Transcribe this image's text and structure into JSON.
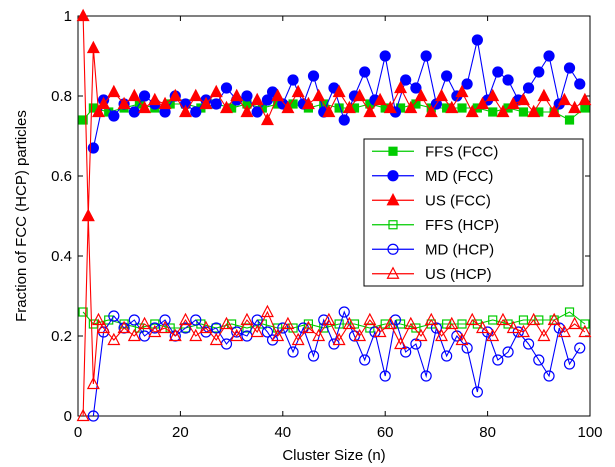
{
  "chart_data": {
    "type": "line",
    "title": "",
    "xlabel": "Cluster Size (n)",
    "ylabel": "Fraction of FCC (HCP) particles",
    "xlim": [
      0,
      100
    ],
    "ylim": [
      0,
      1
    ],
    "x_ticks": [
      0,
      20,
      40,
      60,
      80,
      100
    ],
    "y_ticks": [
      0,
      0.2,
      0.4,
      0.6,
      0.8,
      1
    ],
    "x_tick_labels": [
      "0",
      "20",
      "40",
      "60",
      "80",
      "100"
    ],
    "y_tick_labels": [
      "0",
      "0.2",
      "0.4",
      "0.6",
      "0.8",
      "1"
    ],
    "grid": false,
    "legend_position": "right",
    "series": [
      {
        "name": "FFS (FCC)",
        "color": "#00cc00",
        "marker": "square-filled",
        "x": [
          1,
          3,
          6,
          9,
          12,
          15,
          18,
          21,
          24,
          27,
          30,
          33,
          36,
          39,
          42,
          45,
          48,
          51,
          54,
          57,
          60,
          63,
          66,
          69,
          72,
          75,
          78,
          81,
          84,
          87,
          90,
          93,
          96,
          99
        ],
        "y": [
          0.74,
          0.77,
          0.76,
          0.77,
          0.78,
          0.77,
          0.78,
          0.78,
          0.77,
          0.78,
          0.77,
          0.78,
          0.77,
          0.78,
          0.78,
          0.77,
          0.78,
          0.77,
          0.77,
          0.78,
          0.77,
          0.77,
          0.78,
          0.77,
          0.77,
          0.77,
          0.77,
          0.76,
          0.77,
          0.76,
          0.76,
          0.76,
          0.74,
          0.77
        ]
      },
      {
        "name": "MD (FCC)",
        "color": "#0000ff",
        "marker": "circle-filled",
        "x": [
          3,
          5,
          7,
          9,
          11,
          13,
          15,
          17,
          19,
          21,
          23,
          25,
          27,
          29,
          31,
          33,
          35,
          37,
          38,
          40,
          42,
          44,
          46,
          48,
          50,
          52,
          54,
          56,
          58,
          60,
          62,
          64,
          66,
          68,
          70,
          72,
          74,
          76,
          78,
          80,
          82,
          84,
          86,
          88,
          90,
          92,
          94,
          96,
          98
        ],
        "y": [
          0.67,
          0.79,
          0.75,
          0.78,
          0.76,
          0.8,
          0.78,
          0.76,
          0.8,
          0.78,
          0.76,
          0.79,
          0.78,
          0.82,
          0.79,
          0.8,
          0.76,
          0.79,
          0.81,
          0.78,
          0.84,
          0.78,
          0.85,
          0.76,
          0.82,
          0.74,
          0.8,
          0.86,
          0.79,
          0.9,
          0.76,
          0.84,
          0.82,
          0.9,
          0.78,
          0.85,
          0.8,
          0.83,
          0.94,
          0.79,
          0.86,
          0.84,
          0.79,
          0.82,
          0.86,
          0.9,
          0.78,
          0.87,
          0.83
        ]
      },
      {
        "name": "US (FCC)",
        "color": "#ff0000",
        "marker": "triangle-filled",
        "x": [
          1,
          2,
          3,
          4,
          5,
          7,
          9,
          11,
          13,
          15,
          17,
          19,
          21,
          23,
          25,
          27,
          29,
          31,
          33,
          35,
          37,
          39,
          41,
          43,
          45,
          47,
          49,
          51,
          53,
          55,
          57,
          59,
          61,
          63,
          65,
          67,
          69,
          71,
          73,
          75,
          77,
          79,
          81,
          83,
          85,
          87,
          89,
          91,
          93,
          95,
          97,
          99
        ],
        "y": [
          1.0,
          0.5,
          0.92,
          0.76,
          0.78,
          0.81,
          0.78,
          0.8,
          0.77,
          0.79,
          0.78,
          0.8,
          0.76,
          0.8,
          0.78,
          0.81,
          0.77,
          0.8,
          0.76,
          0.79,
          0.74,
          0.8,
          0.77,
          0.81,
          0.78,
          0.8,
          0.76,
          0.81,
          0.77,
          0.8,
          0.76,
          0.79,
          0.77,
          0.82,
          0.77,
          0.8,
          0.76,
          0.8,
          0.77,
          0.81,
          0.76,
          0.78,
          0.8,
          0.76,
          0.78,
          0.79,
          0.76,
          0.8,
          0.76,
          0.79,
          0.77,
          0.79
        ]
      },
      {
        "name": "FFS (HCP)",
        "color": "#00cc00",
        "marker": "square-open",
        "x": [
          1,
          3,
          6,
          9,
          12,
          15,
          18,
          21,
          24,
          27,
          30,
          33,
          36,
          39,
          42,
          45,
          48,
          51,
          54,
          57,
          60,
          63,
          66,
          69,
          72,
          75,
          78,
          81,
          84,
          87,
          90,
          93,
          96,
          99
        ],
        "y": [
          0.26,
          0.23,
          0.24,
          0.23,
          0.22,
          0.23,
          0.22,
          0.22,
          0.23,
          0.22,
          0.23,
          0.22,
          0.23,
          0.22,
          0.22,
          0.23,
          0.22,
          0.23,
          0.23,
          0.22,
          0.23,
          0.23,
          0.22,
          0.23,
          0.23,
          0.23,
          0.23,
          0.24,
          0.23,
          0.24,
          0.24,
          0.24,
          0.26,
          0.23
        ]
      },
      {
        "name": "MD (HCP)",
        "color": "#0000ff",
        "marker": "circle-open",
        "x": [
          3,
          5,
          7,
          9,
          11,
          13,
          15,
          17,
          19,
          21,
          23,
          25,
          27,
          29,
          31,
          33,
          35,
          37,
          38,
          40,
          42,
          44,
          46,
          48,
          50,
          52,
          54,
          56,
          58,
          60,
          62,
          64,
          66,
          68,
          70,
          72,
          74,
          76,
          78,
          80,
          82,
          84,
          86,
          88,
          90,
          92,
          94,
          96,
          98
        ],
        "y": [
          0.0,
          0.21,
          0.25,
          0.22,
          0.24,
          0.2,
          0.22,
          0.24,
          0.2,
          0.22,
          0.24,
          0.21,
          0.22,
          0.18,
          0.21,
          0.2,
          0.24,
          0.21,
          0.19,
          0.22,
          0.16,
          0.22,
          0.15,
          0.24,
          0.18,
          0.26,
          0.2,
          0.14,
          0.21,
          0.1,
          0.24,
          0.16,
          0.18,
          0.1,
          0.22,
          0.15,
          0.2,
          0.17,
          0.06,
          0.21,
          0.14,
          0.16,
          0.21,
          0.18,
          0.14,
          0.1,
          0.22,
          0.13,
          0.17
        ]
      },
      {
        "name": "US (HCP)",
        "color": "#ff0000",
        "marker": "triangle-open",
        "x": [
          1,
          2,
          3,
          4,
          5,
          7,
          9,
          11,
          13,
          15,
          17,
          19,
          21,
          23,
          25,
          27,
          29,
          31,
          33,
          35,
          37,
          39,
          41,
          43,
          45,
          47,
          49,
          51,
          53,
          55,
          57,
          59,
          61,
          63,
          65,
          67,
          69,
          71,
          73,
          75,
          77,
          79,
          81,
          83,
          85,
          87,
          89,
          91,
          93,
          95,
          97,
          99
        ],
        "y": [
          0.0,
          0.5,
          0.08,
          0.24,
          0.22,
          0.19,
          0.22,
          0.2,
          0.23,
          0.21,
          0.22,
          0.2,
          0.24,
          0.2,
          0.22,
          0.19,
          0.23,
          0.2,
          0.24,
          0.21,
          0.26,
          0.2,
          0.23,
          0.19,
          0.22,
          0.2,
          0.24,
          0.19,
          0.23,
          0.2,
          0.24,
          0.21,
          0.23,
          0.18,
          0.23,
          0.2,
          0.24,
          0.2,
          0.23,
          0.19,
          0.24,
          0.22,
          0.2,
          0.24,
          0.22,
          0.21,
          0.24,
          0.2,
          0.24,
          0.21,
          0.23,
          0.21
        ]
      }
    ]
  }
}
